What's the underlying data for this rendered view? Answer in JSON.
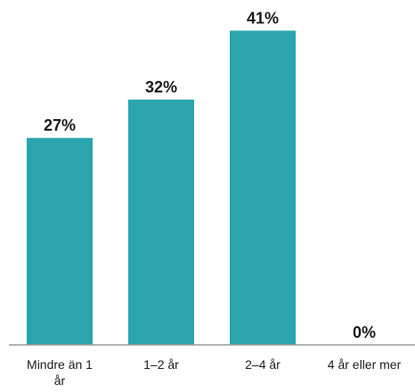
{
  "chart_data": {
    "type": "bar",
    "categories": [
      "Mindre än 1 år",
      "1–2 år",
      "2–4 år",
      "4 år eller mer"
    ],
    "category_lines": [
      [
        "Mindre än 1",
        "år"
      ],
      [
        "1–2 år"
      ],
      [
        "2–4 år"
      ],
      [
        "4 år eller mer"
      ]
    ],
    "values": [
      27,
      32,
      41,
      0
    ],
    "value_labels": [
      "27%",
      "32%",
      "41%",
      "0%"
    ],
    "ylim": [
      0,
      45
    ],
    "grid": false,
    "legend": "none",
    "bar_color": "#2aa5ad",
    "axis_color": "#9a9a9a",
    "text_color": "#1a1a1a"
  }
}
